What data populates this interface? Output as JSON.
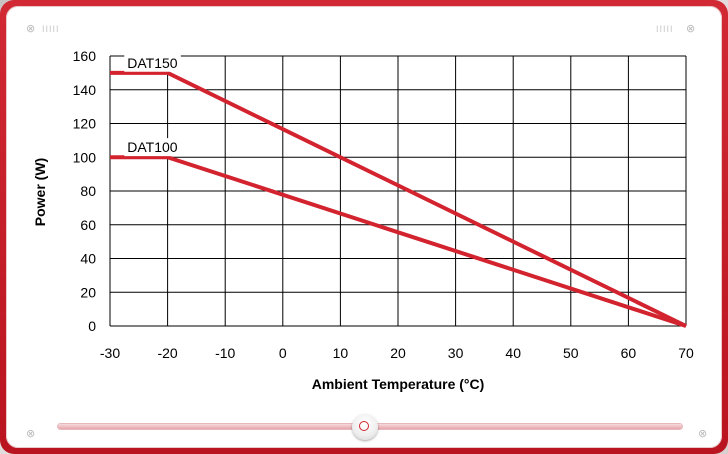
{
  "window": {
    "close_glyph": "⊗",
    "grip_glyph": "IIIII"
  },
  "colors": {
    "frame": "#c8101d",
    "series_line": "#d2232e",
    "grid": "#000000"
  },
  "chart_data": {
    "type": "line",
    "xlabel": "Ambient Temperature  (°C)",
    "ylabel": "Power (W)",
    "xlim": [
      -30,
      70
    ],
    "ylim": [
      0,
      160
    ],
    "x_ticks": [
      -30,
      -20,
      -10,
      0,
      10,
      20,
      30,
      40,
      50,
      60,
      70
    ],
    "y_ticks": [
      0,
      20,
      40,
      60,
      80,
      100,
      120,
      140,
      160
    ],
    "grid": true,
    "series": [
      {
        "name": "DAT150",
        "x": [
          -30,
          -20,
          70
        ],
        "y": [
          150,
          150,
          0
        ],
        "label_x": -27,
        "label_y": 156
      },
      {
        "name": "DAT100",
        "x": [
          -30,
          -20,
          70
        ],
        "y": [
          100,
          100,
          0
        ],
        "label_x": -27,
        "label_y": 106
      }
    ]
  },
  "slider": {
    "value": 0.5
  }
}
